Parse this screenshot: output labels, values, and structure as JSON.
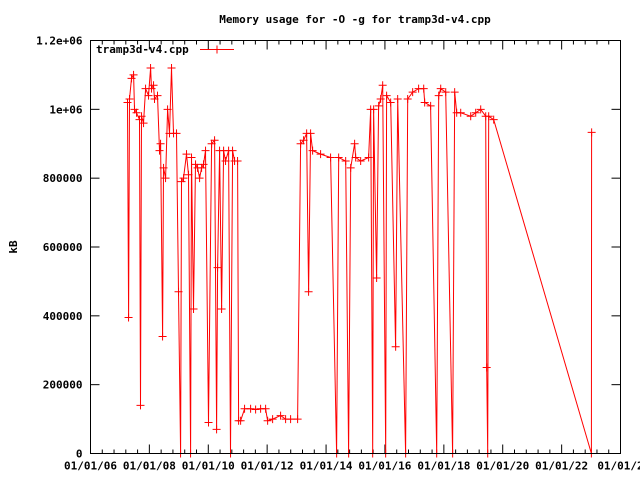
{
  "chart_data": {
    "type": "line",
    "title": "Memory usage for -O -g for tramp3d-v4.cpp",
    "xlabel": "",
    "ylabel": "kB",
    "xlim": [
      "2006-01-01",
      "2024-01-01"
    ],
    "ylim": [
      0,
      1200000
    ],
    "x_ticks": [
      "01/01/06",
      "01/01/08",
      "01/01/10",
      "01/01/12",
      "01/01/14",
      "01/01/16",
      "01/01/18",
      "01/01/20",
      "01/01/22",
      "01/01/2"
    ],
    "y_ticks": [
      "0",
      "200000",
      "400000",
      "600000",
      "800000",
      "1e+06",
      "1.2e+06"
    ],
    "y_tick_values": [
      0,
      200000,
      400000,
      600000,
      800000,
      1000000,
      1200000
    ],
    "grid": false,
    "legend_placement": "top-left",
    "marker": "plus",
    "colors": {
      "series": "#ff0000",
      "axes": "#000000"
    },
    "series": [
      {
        "name": "tramp3d-v4.cpp",
        "points": [
          [
            "2007-04-05",
            1020000
          ],
          [
            "2007-04-18",
            395000
          ],
          [
            "2007-04-30",
            1030000
          ],
          [
            "2007-05-25",
            1090000
          ],
          [
            "2007-06-19",
            1100000
          ],
          [
            "2007-07-01",
            1000000
          ],
          [
            "2007-07-26",
            990000
          ],
          [
            "2007-09-01",
            970000
          ],
          [
            "2007-09-13",
            140000
          ],
          [
            "2007-09-26",
            980000
          ],
          [
            "2007-10-21",
            960000
          ],
          [
            "2007-11-15",
            1060000
          ],
          [
            "2007-12-22",
            1040000
          ],
          [
            "2008-01-16",
            1120000
          ],
          [
            "2008-01-28",
            1060000
          ],
          [
            "2008-02-22",
            1070000
          ],
          [
            "2008-03-05",
            1030000
          ],
          [
            "2008-04-11",
            1040000
          ],
          [
            "2008-05-06",
            880000
          ],
          [
            "2008-05-19",
            900000
          ],
          [
            "2008-06-13",
            340000
          ],
          [
            "2008-06-25",
            830000
          ],
          [
            "2008-07-20",
            800000
          ],
          [
            "2008-08-14",
            1000000
          ],
          [
            "2008-09-07",
            930000
          ],
          [
            "2008-10-02",
            1120000
          ],
          [
            "2008-10-27",
            930000
          ],
          [
            "2008-12-03",
            930000
          ],
          [
            "2008-12-28",
            470000
          ],
          [
            "2009-01-22",
            0
          ],
          [
            "2009-02-03",
            790000
          ],
          [
            "2009-02-28",
            800000
          ],
          [
            "2009-04-06",
            870000
          ],
          [
            "2009-05-01",
            810000
          ],
          [
            "2009-05-26",
            0
          ],
          [
            "2009-06-07",
            860000
          ],
          [
            "2009-07-02",
            420000
          ],
          [
            "2009-07-27",
            840000
          ],
          [
            "2009-08-21",
            830000
          ],
          [
            "2009-09-15",
            800000
          ],
          [
            "2009-10-10",
            830000
          ],
          [
            "2009-11-03",
            840000
          ],
          [
            "2009-11-28",
            880000
          ],
          [
            "2010-01-04",
            90000
          ],
          [
            "2010-02-11",
            900000
          ],
          [
            "2010-03-20",
            910000
          ],
          [
            "2010-04-14",
            70000
          ],
          [
            "2010-04-26",
            540000
          ],
          [
            "2010-05-21",
            880000
          ],
          [
            "2010-06-15",
            420000
          ],
          [
            "2010-07-10",
            880000
          ],
          [
            "2010-08-03",
            850000
          ],
          [
            "2010-09-10",
            880000
          ],
          [
            "2010-10-04",
            0
          ],
          [
            "2010-10-29",
            880000
          ],
          [
            "2010-11-23",
            850000
          ],
          [
            "2010-12-30",
            850000
          ],
          [
            "2011-01-12",
            95000
          ],
          [
            "2011-02-06",
            95000
          ],
          [
            "2011-03-27",
            130000
          ],
          [
            "2011-06-10",
            130000
          ],
          [
            "2011-08-11",
            128000
          ],
          [
            "2011-10-12",
            130000
          ],
          [
            "2011-12-13",
            130000
          ],
          [
            "2012-01-07",
            95000
          ],
          [
            "2012-03-09",
            100000
          ],
          [
            "2012-06-16",
            110000
          ],
          [
            "2012-08-17",
            100000
          ],
          [
            "2012-10-18",
            100000
          ],
          [
            "2013-01-13",
            100000
          ],
          [
            "2013-02-19",
            900000
          ],
          [
            "2013-03-28",
            910000
          ],
          [
            "2013-05-05",
            930000
          ],
          [
            "2013-05-29",
            470000
          ],
          [
            "2013-06-23",
            930000
          ],
          [
            "2013-07-18",
            880000
          ],
          [
            "2013-10-25",
            870000
          ],
          [
            "2014-02-26",
            860000
          ],
          [
            "2014-05-12",
            0
          ],
          [
            "2014-06-06",
            860000
          ],
          [
            "2014-09-01",
            850000
          ],
          [
            "2014-10-08",
            0
          ],
          [
            "2014-11-02",
            830000
          ],
          [
            "2014-12-21",
            900000
          ],
          [
            "2015-01-03",
            860000
          ],
          [
            "2015-03-06",
            850000
          ],
          [
            "2015-06-13",
            860000
          ],
          [
            "2015-07-08",
            1000000
          ],
          [
            "2015-08-02",
            0
          ],
          [
            "2015-08-14",
            1000000
          ],
          [
            "2015-09-20",
            510000
          ],
          [
            "2015-10-15",
            1010000
          ],
          [
            "2015-11-09",
            1030000
          ],
          [
            "2015-12-04",
            1070000
          ],
          [
            "2016-01-10",
            0
          ],
          [
            "2016-01-22",
            1040000
          ],
          [
            "2016-03-12",
            1020000
          ],
          [
            "2016-05-13",
            310000
          ],
          [
            "2016-06-07",
            1030000
          ],
          [
            "2016-09-14",
            0
          ],
          [
            "2016-10-09",
            1030000
          ],
          [
            "2016-12-10",
            1050000
          ],
          [
            "2017-02-22",
            1060000
          ],
          [
            "2017-04-26",
            1060000
          ],
          [
            "2017-05-08",
            1020000
          ],
          [
            "2017-07-21",
            1010000
          ],
          [
            "2017-10-04",
            0
          ],
          [
            "2017-10-29",
            1040000
          ],
          [
            "2017-11-23",
            1060000
          ],
          [
            "2018-01-24",
            1050000
          ],
          [
            "2018-04-20",
            0
          ],
          [
            "2018-05-15",
            1050000
          ],
          [
            "2018-06-09",
            990000
          ],
          [
            "2018-07-29",
            990000
          ],
          [
            "2018-11-30",
            980000
          ],
          [
            "2019-01-31",
            990000
          ],
          [
            "2019-04-03",
            1000000
          ],
          [
            "2019-06-04",
            980000
          ],
          [
            "2019-06-16",
            250000
          ],
          [
            "2019-06-29",
            0
          ],
          [
            "2019-07-11",
            980000
          ],
          [
            "2019-09-11",
            970000
          ],
          [
            "2023-01-05",
            0
          ],
          [
            "2023-01-08",
            933000
          ]
        ]
      }
    ]
  }
}
